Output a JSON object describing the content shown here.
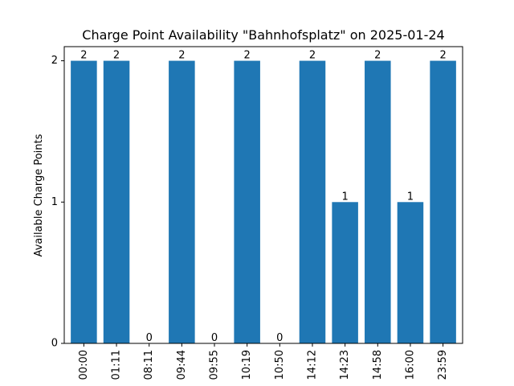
{
  "chart_data": {
    "type": "bar",
    "title": "Charge Point Availability \"Bahnhofsplatz\" on 2025-01-24",
    "xlabel": "",
    "ylabel": "Available Charge Points",
    "categories": [
      "00:00",
      "01:11",
      "08:11",
      "09:44",
      "09:55",
      "10:19",
      "10:50",
      "14:12",
      "14:23",
      "14:58",
      "16:00",
      "23:59"
    ],
    "values": [
      2,
      2,
      0,
      2,
      0,
      2,
      0,
      2,
      1,
      2,
      1,
      2
    ],
    "yticks": [
      0,
      1,
      2
    ],
    "ylim": [
      0,
      2.1
    ],
    "bar_color": "#1f77b4",
    "grid": false,
    "legend": "none",
    "data_labels": true
  }
}
